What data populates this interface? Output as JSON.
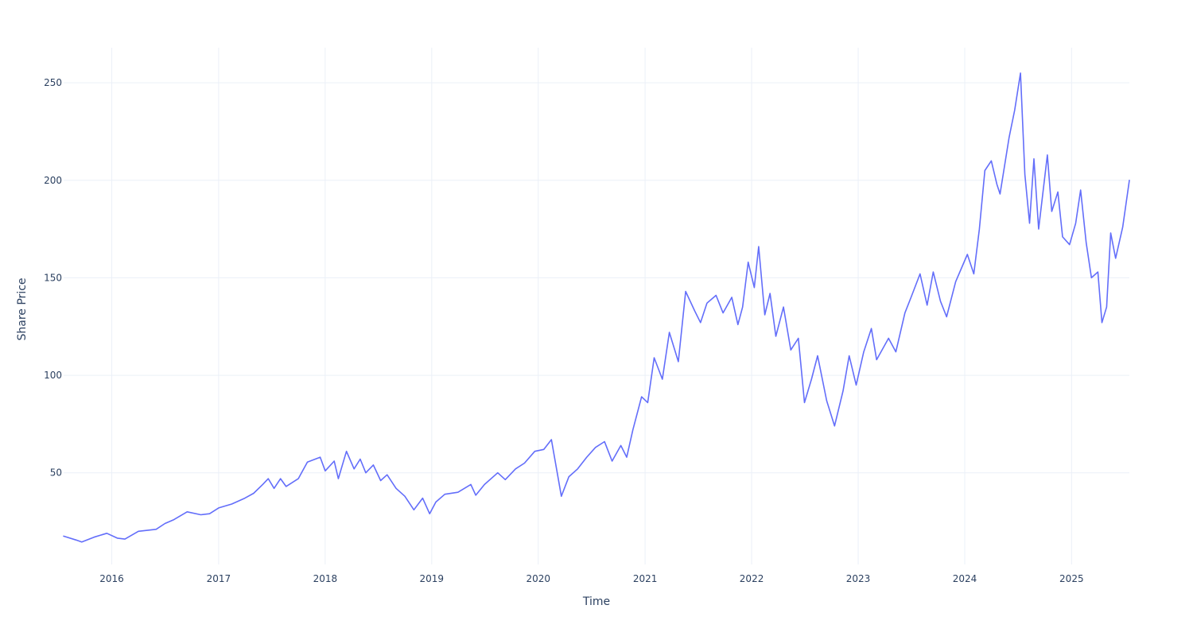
{
  "chart_data": {
    "type": "line",
    "title": "",
    "xlabel": "Time",
    "ylabel": "Share Price",
    "x_ticks": [
      "2016",
      "2017",
      "2018",
      "2019",
      "2020",
      "2021",
      "2022",
      "2023",
      "2024",
      "2025"
    ],
    "y_ticks": [
      50,
      100,
      150,
      200,
      250
    ],
    "xlim": [
      "2015-07-20",
      "2025-07-18"
    ],
    "ylim": [
      3,
      268
    ],
    "grid": true,
    "legend": "none",
    "series": [
      {
        "color": "#636efa",
        "points": [
          [
            "2015-07-20",
            17.5
          ],
          [
            "2015-09-01",
            15.5
          ],
          [
            "2015-09-20",
            14.5
          ],
          [
            "2015-11-01",
            17.0
          ],
          [
            "2015-12-15",
            19.0
          ],
          [
            "2016-01-20",
            16.5
          ],
          [
            "2016-02-15",
            16.0
          ],
          [
            "2016-04-01",
            20.0
          ],
          [
            "2016-06-01",
            21.0
          ],
          [
            "2016-07-01",
            24.0
          ],
          [
            "2016-08-01",
            26.0
          ],
          [
            "2016-09-15",
            30.0
          ],
          [
            "2016-11-01",
            28.5
          ],
          [
            "2016-12-01",
            29.0
          ],
          [
            "2017-01-01",
            32.0
          ],
          [
            "2017-02-15",
            34.0
          ],
          [
            "2017-04-01",
            37.0
          ],
          [
            "2017-05-01",
            39.5
          ],
          [
            "2017-06-01",
            44.0
          ],
          [
            "2017-06-20",
            47.0
          ],
          [
            "2017-07-10",
            42.0
          ],
          [
            "2017-08-01",
            47.0
          ],
          [
            "2017-08-20",
            43.0
          ],
          [
            "2017-10-01",
            47.0
          ],
          [
            "2017-11-01",
            55.5
          ],
          [
            "2017-12-15",
            58.0
          ],
          [
            "2018-01-01",
            51.0
          ],
          [
            "2018-02-01",
            56.0
          ],
          [
            "2018-02-15",
            47.0
          ],
          [
            "2018-03-15",
            61.0
          ],
          [
            "2018-04-10",
            52.0
          ],
          [
            "2018-05-01",
            57.0
          ],
          [
            "2018-05-20",
            50.0
          ],
          [
            "2018-06-15",
            54.0
          ],
          [
            "2018-07-10",
            46.0
          ],
          [
            "2018-08-01",
            49.0
          ],
          [
            "2018-09-01",
            42.0
          ],
          [
            "2018-10-01",
            38.0
          ],
          [
            "2018-11-01",
            31.0
          ],
          [
            "2018-12-01",
            37.0
          ],
          [
            "2018-12-25",
            29.0
          ],
          [
            "2019-01-15",
            35.0
          ],
          [
            "2019-02-15",
            39.0
          ],
          [
            "2019-04-01",
            40.0
          ],
          [
            "2019-05-15",
            44.0
          ],
          [
            "2019-06-01",
            38.5
          ],
          [
            "2019-07-01",
            44.0
          ],
          [
            "2019-08-15",
            50.0
          ],
          [
            "2019-09-10",
            46.5
          ],
          [
            "2019-10-15",
            52.0
          ],
          [
            "2019-11-15",
            55.0
          ],
          [
            "2019-12-20",
            61.0
          ],
          [
            "2020-01-20",
            62.0
          ],
          [
            "2020-02-15",
            67.0
          ],
          [
            "2020-03-20",
            38.0
          ],
          [
            "2020-04-15",
            48.0
          ],
          [
            "2020-05-15",
            52.0
          ],
          [
            "2020-06-15",
            58.0
          ],
          [
            "2020-07-15",
            63.0
          ],
          [
            "2020-08-15",
            66.0
          ],
          [
            "2020-09-10",
            56.0
          ],
          [
            "2020-10-10",
            64.0
          ],
          [
            "2020-10-30",
            58.0
          ],
          [
            "2020-11-20",
            72.0
          ],
          [
            "2020-12-20",
            89.0
          ],
          [
            "2021-01-10",
            86.0
          ],
          [
            "2021-02-01",
            109.0
          ],
          [
            "2021-03-01",
            98.0
          ],
          [
            "2021-03-25",
            122.0
          ],
          [
            "2021-04-25",
            107.0
          ],
          [
            "2021-05-20",
            143.0
          ],
          [
            "2021-06-20",
            133.0
          ],
          [
            "2021-07-10",
            127.0
          ],
          [
            "2021-08-01",
            137.0
          ],
          [
            "2021-09-01",
            141.0
          ],
          [
            "2021-09-25",
            132.0
          ],
          [
            "2021-10-25",
            140.0
          ],
          [
            "2021-11-15",
            126.0
          ],
          [
            "2021-12-01",
            135.0
          ],
          [
            "2021-12-20",
            158.0
          ],
          [
            "2022-01-10",
            145.0
          ],
          [
            "2022-01-25",
            166.0
          ],
          [
            "2022-02-15",
            131.0
          ],
          [
            "2022-03-05",
            142.0
          ],
          [
            "2022-03-25",
            120.0
          ],
          [
            "2022-04-20",
            135.0
          ],
          [
            "2022-05-15",
            113.0
          ],
          [
            "2022-06-10",
            119.0
          ],
          [
            "2022-07-01",
            86.0
          ],
          [
            "2022-07-25",
            98.0
          ],
          [
            "2022-08-15",
            110.0
          ],
          [
            "2022-09-15",
            87.0
          ],
          [
            "2022-10-12",
            74.0
          ],
          [
            "2022-11-10",
            92.0
          ],
          [
            "2022-12-01",
            110.0
          ],
          [
            "2022-12-25",
            95.0
          ],
          [
            "2023-01-20",
            112.0
          ],
          [
            "2023-02-15",
            124.0
          ],
          [
            "2023-03-05",
            108.0
          ],
          [
            "2023-04-15",
            119.0
          ],
          [
            "2023-05-10",
            112.0
          ],
          [
            "2023-06-10",
            132.0
          ],
          [
            "2023-07-01",
            140.0
          ],
          [
            "2023-08-01",
            152.0
          ],
          [
            "2023-08-25",
            136.0
          ],
          [
            "2023-09-15",
            153.0
          ],
          [
            "2023-10-10",
            138.0
          ],
          [
            "2023-10-31",
            130.0
          ],
          [
            "2023-12-01",
            148.0
          ],
          [
            "2024-01-10",
            162.0
          ],
          [
            "2024-02-01",
            152.0
          ],
          [
            "2024-02-20",
            175.0
          ],
          [
            "2024-03-10",
            205.0
          ],
          [
            "2024-04-01",
            210.0
          ],
          [
            "2024-04-20",
            198.0
          ],
          [
            "2024-05-01",
            193.0
          ],
          [
            "2024-06-01",
            222.0
          ],
          [
            "2024-06-20",
            236.0
          ],
          [
            "2024-07-10",
            255.0
          ],
          [
            "2024-07-25",
            203.0
          ],
          [
            "2024-08-10",
            178.0
          ],
          [
            "2024-08-25",
            211.0
          ],
          [
            "2024-09-10",
            175.0
          ],
          [
            "2024-10-10",
            213.0
          ],
          [
            "2024-10-25",
            184.0
          ],
          [
            "2024-11-15",
            194.0
          ],
          [
            "2024-12-01",
            171.0
          ],
          [
            "2024-12-25",
            167.0
          ],
          [
            "2025-01-15",
            178.0
          ],
          [
            "2025-02-01",
            195.0
          ],
          [
            "2025-02-20",
            168.0
          ],
          [
            "2025-03-10",
            150.0
          ],
          [
            "2025-04-01",
            153.0
          ],
          [
            "2025-04-15",
            127.0
          ],
          [
            "2025-05-01",
            135.0
          ],
          [
            "2025-05-15",
            173.0
          ],
          [
            "2025-06-01",
            160.0
          ],
          [
            "2025-06-25",
            176.0
          ],
          [
            "2025-07-18",
            200.0
          ]
        ]
      }
    ]
  }
}
